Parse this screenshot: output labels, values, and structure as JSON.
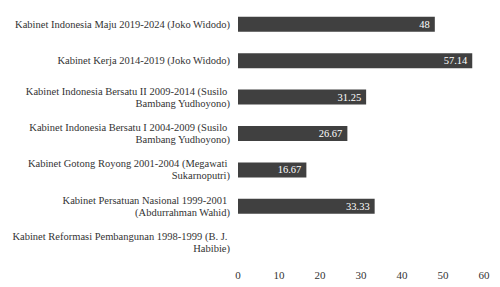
{
  "chart_data": {
    "type": "bar",
    "orientation": "horizontal",
    "categories": [
      "Kabinet Indonesia Maju 2019-2024 (Joko Widodo)",
      "Kabinet Kerja 2014-2019 (Joko Widodo)",
      "Kabinet Indonesia Bersatu II 2009-2014 (Susilo Bambang Yudhoyono)",
      "Kabinet Indonesia Bersatu I 2004-2009 (Susilo Bambang Yudhoyono)",
      "Kabinet Gotong Royong 2001-2004 (Megawati Sukarnoputri)",
      "Kabinet Persatuan Nasional 1999-2001 (Abdurrahman Wahid)",
      "Kabinet Reformasi Pembangunan 1998-1999 (B. J. Habibie)"
    ],
    "values": [
      48,
      57.14,
      31.25,
      26.67,
      16.67,
      33.33,
      null
    ],
    "color": "#404040",
    "xlim": [
      0,
      60
    ],
    "xticks": [
      0,
      10,
      20,
      30,
      40,
      50,
      60
    ],
    "grid": false,
    "data_labels": true
  }
}
